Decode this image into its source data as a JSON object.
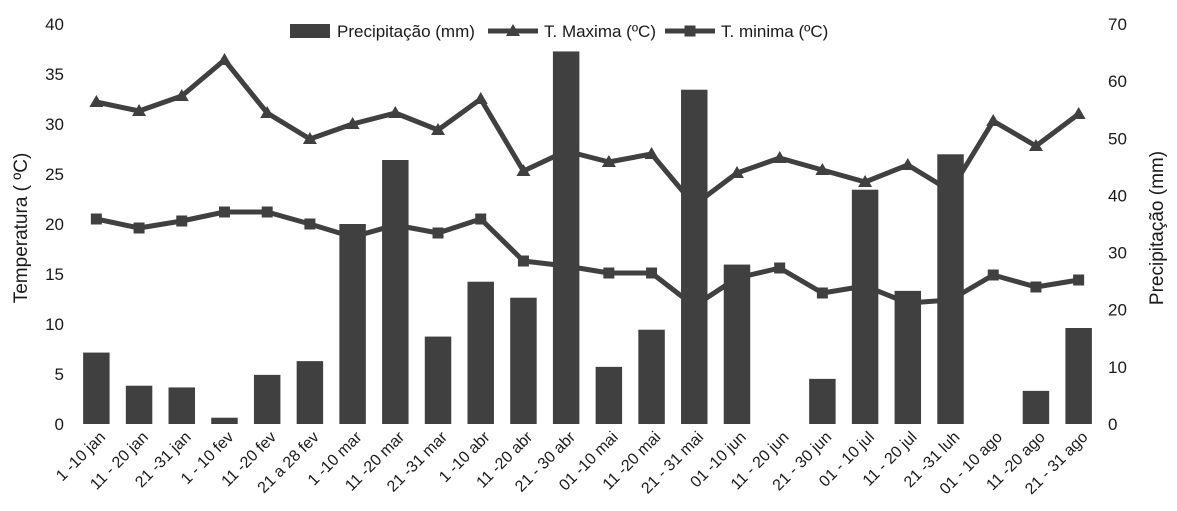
{
  "chart_data": {
    "type": "bar+line",
    "categories": [
      "1 -10 jan",
      "11 - 20 jan",
      "21 -31 jan",
      "1 - 10 fev",
      "11 -20 fev",
      "21 a 28 fev",
      "1 -10 mar",
      "11 -20 mar",
      "21 -31 mar",
      "1 -10 abr",
      "11 -20 abr",
      "21 - 30 abr",
      "01 -10 mai",
      "11 -20 mai",
      "21 - 31 mai",
      "01 -10 jun",
      "11 - 20 jun",
      "21 - 30 jun",
      "01 - 10 jul",
      "11 - 20 jul",
      "21 -31 luh",
      "01 - 10 ago",
      "11 -20 ago",
      "21 - 31 ago"
    ],
    "series": [
      {
        "name": "Precipitação (mm)",
        "type": "bar",
        "axis": "right",
        "color": "#404040",
        "values": [
          12.5,
          6.7,
          6.4,
          1.1,
          8.6,
          11.0,
          35.0,
          46.2,
          15.3,
          24.9,
          22.1,
          65.2,
          10.0,
          16.5,
          58.5,
          27.9,
          0,
          7.9,
          41.0,
          23.3,
          47.2,
          0,
          5.8,
          16.8
        ]
      },
      {
        "name": "T. Maxima (ºC)",
        "type": "line",
        "axis": "left",
        "marker": "triangle",
        "color": "#404040",
        "values": [
          32.2,
          31.3,
          32.8,
          36.4,
          31.1,
          28.5,
          30.0,
          31.1,
          29.4,
          32.5,
          25.3,
          27.3,
          26.2,
          27.0,
          21.9,
          25.1,
          26.6,
          25.4,
          24.2,
          25.9,
          23.3,
          30.3,
          27.8,
          31.0
        ]
      },
      {
        "name": "T. minima (ºC)",
        "type": "line",
        "axis": "left",
        "marker": "square",
        "color": "#404040",
        "values": [
          20.5,
          19.6,
          20.3,
          21.2,
          21.2,
          20.0,
          18.7,
          19.9,
          19.1,
          20.5,
          16.3,
          15.8,
          15.1,
          15.1,
          11.8,
          14.6,
          15.6,
          13.1,
          13.8,
          12.1,
          12.4,
          14.9,
          13.7,
          14.4
        ]
      }
    ],
    "ylabel": "Temperatura  ( ºC)",
    "ylabel_right": "Precipitação (mm)",
    "ylim": [
      0,
      40
    ],
    "ylim_right": [
      0,
      70
    ],
    "yticks": [
      0,
      5,
      10,
      15,
      20,
      25,
      30,
      35,
      40
    ],
    "yticks_right": [
      0,
      10,
      20,
      30,
      40,
      50,
      60,
      70
    ],
    "grid": false,
    "legend_placement": "top-center"
  }
}
